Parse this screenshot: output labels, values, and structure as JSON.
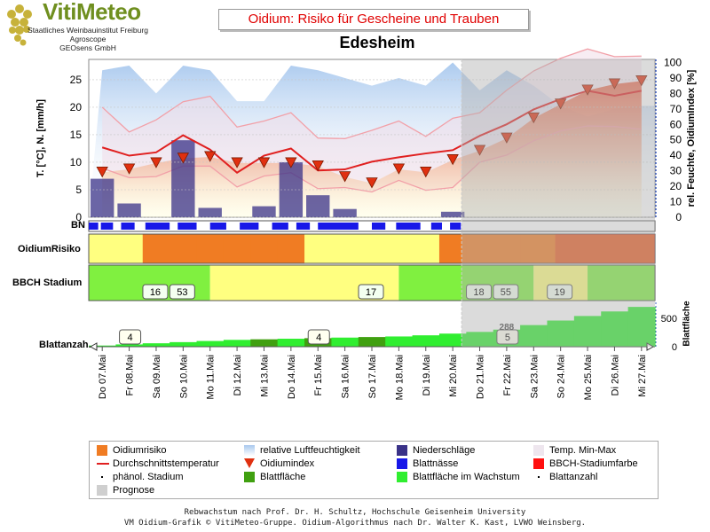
{
  "header": {
    "logo_title": "VitiMeteo",
    "logo_lines": [
      "Staatliches Weinbauinstitut Freiburg",
      "Agroscope",
      "GEOsens GmbH"
    ],
    "chart_title": "Oidium: Risiko für Gescheine und Trauben",
    "station": "Edesheim"
  },
  "rows": {
    "bn": "BN",
    "risk": "OidiumRisiko",
    "bbch": "BBCH Stadium",
    "leaves": "Blattanzahl"
  },
  "axes": {
    "left_label": "T. [°C], N. [mm/h]",
    "right_label": "rel. Feuchte, OidiumIndex [%]",
    "leaf_label": "Blattfläche",
    "left_ticks": [
      0,
      5,
      10,
      15,
      20,
      25
    ],
    "right_ticks": [
      0,
      10,
      20,
      30,
      40,
      50,
      60,
      70,
      80,
      90,
      100
    ],
    "leaf_ticks": [
      0,
      500
    ]
  },
  "colors": {
    "risk_high": "#f07c23",
    "risk_low": "#ffff80",
    "temp_line": "#e02020",
    "humidity": "#a8c8ee",
    "rain": "#3a3288",
    "leafwet": "#1818e8",
    "bbch_green": "#80f040",
    "bbch_yellow": "#ffff80",
    "leaf_grow": "#30ee30",
    "leaf_area": "#40a010",
    "index_marker": "#e03010",
    "forecast": "#b0b0b0"
  },
  "chart_data": {
    "type": "line",
    "x": [
      "Do 07.Mai",
      "Fr 08.Mai",
      "Sa 09.Mai",
      "So 10.Mai",
      "Mo 11.Mai",
      "Di 12.Mai",
      "Mi 13.Mai",
      "Do 14.Mai",
      "Fr 15.Mai",
      "Sa 16.Mai",
      "So 17.Mai",
      "Mo 18.Mai",
      "Di 19.Mai",
      "Mi 20.Mai",
      "Do 21.Mai",
      "Fr 22.Mai",
      "Sa 23.Mai",
      "So 24.Mai",
      "Mo 25.Mai",
      "Di 26.Mai",
      "Mi 27.Mai"
    ],
    "forecast_from": "Mi 20.Mai",
    "temp_mean": [
      12.7,
      11.2,
      11.8,
      14.9,
      12.3,
      8.1,
      11.2,
      12.5,
      8.5,
      8.7,
      10.1,
      10.9,
      11.6,
      12.2,
      14.8,
      16.9,
      19.6,
      21.5,
      23.0,
      22.1,
      23.0
    ],
    "temp_max": [
      20.0,
      15.5,
      17.7,
      21.0,
      22.0,
      16.4,
      17.5,
      19.0,
      14.4,
      14.3,
      15.8,
      17.5,
      14.7,
      18.0,
      19.0,
      23.1,
      26.6,
      28.9,
      30.6,
      29.2,
      29.3
    ],
    "temp_min": [
      8.9,
      7.2,
      7.4,
      9.3,
      9.3,
      5.5,
      7.5,
      8.1,
      5.2,
      5.4,
      4.6,
      6.7,
      4.9,
      5.4,
      10.0,
      11.3,
      13.9,
      15.7,
      16.6,
      16.5,
      16.0
    ],
    "humidity": [
      95,
      98,
      80,
      98,
      95,
      75,
      75,
      98,
      95,
      90,
      85,
      90,
      85,
      100,
      82,
      95,
      85,
      72,
      65,
      70,
      72
    ],
    "oidium_index": [
      29,
      31,
      35,
      38,
      39,
      35,
      35,
      35,
      33,
      26,
      22,
      31,
      29,
      37,
      43,
      51,
      64,
      73,
      82,
      86,
      88
    ],
    "rain": [
      7,
      2.5,
      0,
      14,
      1.7,
      0,
      2,
      10,
      4,
      1.5,
      0,
      0,
      0,
      1,
      0,
      0,
      0,
      0,
      0,
      0,
      0
    ],
    "risk_levels": [
      "low",
      "low",
      "high",
      "high",
      "high",
      "high",
      "high",
      "high",
      "low",
      "low",
      "low",
      "low",
      "low",
      "high",
      "high",
      "high",
      "high",
      "high",
      "high",
      "high",
      "high"
    ],
    "bbch_labels": [
      {
        "day": "Sa 09.Mai",
        "text": "16"
      },
      {
        "day": "So 10.Mai",
        "text": "53"
      },
      {
        "day": "So 17.Mai",
        "text": "17"
      },
      {
        "day": "Do 21.Mai",
        "text": "18"
      },
      {
        "day": "Fr 22.Mai",
        "text": "55"
      },
      {
        "day": "So 24.Mai",
        "text": "19"
      }
    ],
    "leaf_labels": [
      {
        "day": "Fr 08.Mai",
        "text": "4"
      },
      {
        "day": "Fr 15.Mai",
        "text": "4"
      },
      {
        "day": "Fr 22.Mai",
        "text": "5"
      },
      {
        "day": "Fr 22.Mai",
        "text": "288"
      }
    ],
    "leaf_area": [
      20,
      40,
      60,
      80,
      100,
      120,
      130,
      140,
      150,
      160,
      170,
      180,
      200,
      230,
      260,
      300,
      380,
      460,
      540,
      620,
      700
    ]
  },
  "legend": [
    {
      "label": "Oidiumrisiko",
      "swatch": "risk_high",
      "kind": "box"
    },
    {
      "label": "relative Luftfeuchtigkeit",
      "swatch": "humidity",
      "kind": "grad"
    },
    {
      "label": "Niederschläge",
      "swatch": "rain",
      "kind": "box"
    },
    {
      "label": "Temp. Min-Max",
      "swatch": "#eee6ee",
      "kind": "box"
    },
    {
      "label": "Durchschnittstemperatur",
      "swatch": "temp_line",
      "kind": "line"
    },
    {
      "label": "Oidiumindex",
      "swatch": "index_marker",
      "kind": "tri"
    },
    {
      "label": "Blattnässe",
      "swatch": "leafwet",
      "kind": "box"
    },
    {
      "label": "BBCH-Stadiumfarbe",
      "swatch": "#ff1010",
      "kind": "box"
    },
    {
      "label": "phänol. Stadium",
      "swatch": "#000",
      "kind": "dot"
    },
    {
      "label": "Blattfläche",
      "swatch": "leaf_area",
      "kind": "box"
    },
    {
      "label": "Blattfläche im Wachstum",
      "swatch": "leaf_grow",
      "kind": "box"
    },
    {
      "label": "Blattanzahl",
      "swatch": "#000",
      "kind": "dot"
    },
    {
      "label": "Prognose",
      "swatch": "#cfcfcf",
      "kind": "box"
    }
  ],
  "credits": [
    "Rebwachstum nach Prof. Dr. H. Schultz, Hochschule Geisenheim University",
    "VM Oidium-Grafik © VitiMeteo-Gruppe. Oidium-Algorithmus nach Dr. Walter K. Kast, LVWO Weinsberg."
  ]
}
